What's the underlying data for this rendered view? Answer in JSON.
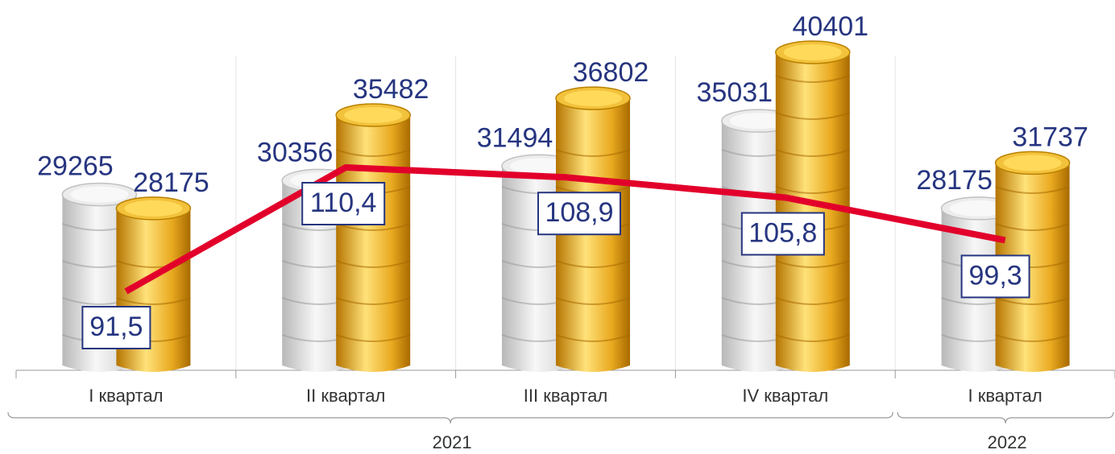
{
  "chart_data": {
    "type": "coin-bar-line",
    "categories": [
      "I квартал",
      "II квартал",
      "III квартал",
      "IV квартал",
      "I квартал"
    ],
    "years": [
      "2021",
      "2022"
    ],
    "series": [
      {
        "color": "#d4d4d4",
        "values": [
          29265,
          30356,
          31494,
          35031,
          28175
        ]
      },
      {
        "color": "#e5a81c",
        "values": [
          28175,
          35482,
          36802,
          40401,
          31737
        ]
      },
      {
        "type": "line",
        "color": "#e2002b",
        "values": [
          91.5,
          110.4,
          108.9,
          105.8,
          99.3
        ],
        "value_labels": [
          "91,5",
          "110,4",
          "108,9",
          "105,8",
          "99,3"
        ]
      }
    ]
  }
}
